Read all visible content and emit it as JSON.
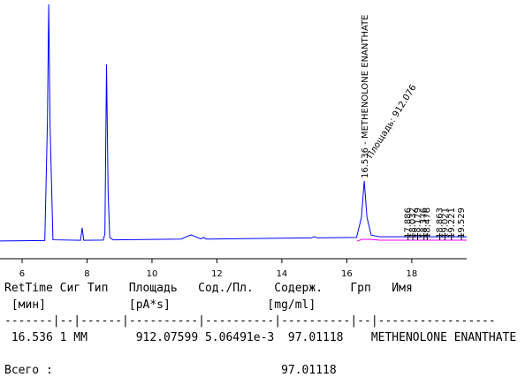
{
  "chart_data": {
    "type": "line",
    "x": [
      5.32,
      6.7,
      6.78,
      6.82,
      6.86,
      6.95,
      7.8,
      7.85,
      7.9,
      8.5,
      8.55,
      8.6,
      8.65,
      8.7,
      8.8,
      10.9,
      11.2,
      11.5,
      11.6,
      11.65,
      11.7,
      14.9,
      15.0,
      15.1,
      16.3,
      16.45,
      16.536,
      16.62,
      16.75,
      17.0,
      19.69
    ],
    "series": [
      {
        "color": "#0000ff",
        "values": [
          0,
          0.2,
          50,
          100,
          50,
          0.5,
          0.3,
          5.6,
          0.3,
          0.4,
          3,
          74.6,
          20,
          1.5,
          0.5,
          0.8,
          2.6,
          0.9,
          1.5,
          0.9,
          0.8,
          1.3,
          1.8,
          1.3,
          1.5,
          10,
          25.4,
          10,
          2.5,
          1.8,
          1.8
        ]
      }
    ],
    "xlim": [
      5.32,
      19.69
    ],
    "xticks": [
      6,
      8,
      10,
      12,
      14,
      16,
      18
    ],
    "ylim": [
      -7.5,
      100
    ],
    "annotations": [
      "16.536 - METHENOLONE ENANTHATE",
      "Площадь: 912.076"
    ],
    "peak_labels": [
      17.886,
      18.032,
      18.179,
      18.376,
      18.476,
      18.863,
      19.021,
      19.221,
      19.529
    ]
  },
  "report": {
    "lines": [
      "RetTime Сиг Тип   Площадь   Сод./Пл.   Содерж.    Грп   Имя",
      " [мин]            [pA*s]              [mg/ml]",
      "-------|--|------|----------|----------|----------|--|-----------------",
      " 16.536 1 MM       912.07599 5.06491e-3  97.01118    METHENOLONE ENANTHATE",
      "",
      "Всего :                                 97.01118"
    ]
  }
}
